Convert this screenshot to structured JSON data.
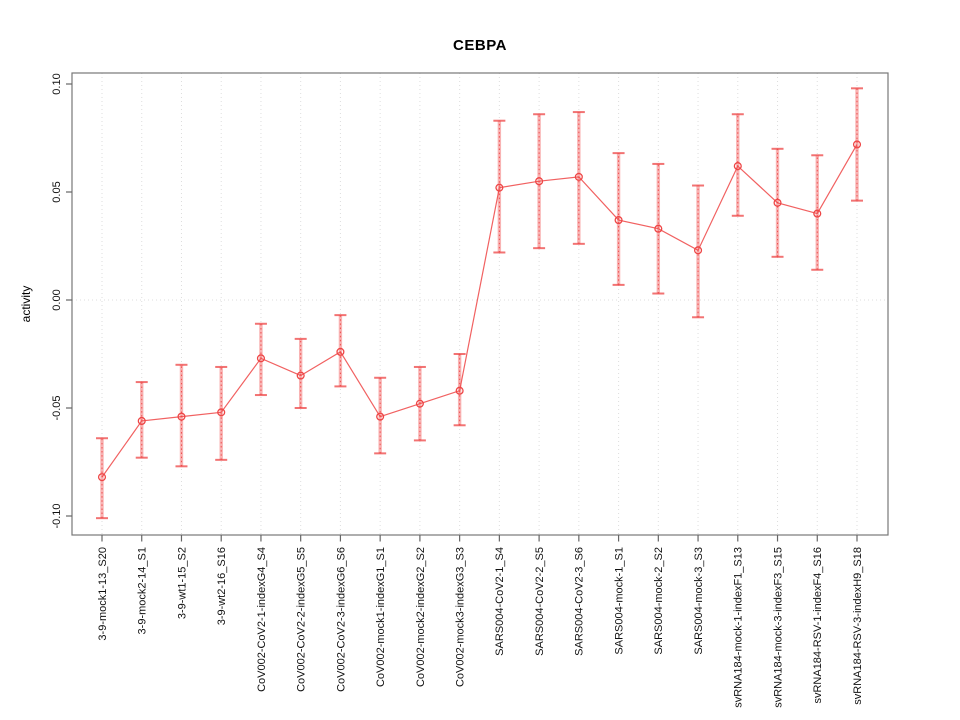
{
  "chart_data": {
    "type": "line",
    "title": "CEBPA",
    "xlabel": "",
    "ylabel": "activity",
    "ylim": [
      -0.109,
      0.105
    ],
    "grid": "vertical dotted gridline at each category; dotted horizontal line at y=0; full plot box; no legend",
    "marker": "open-circle",
    "error_bars": "vertical, semi-transparent thick bar with dashed centerline and flat caps",
    "yticks": {
      "values": [
        0.1,
        0.05,
        0.0,
        -0.05,
        -0.1
      ],
      "labels": [
        "0.10",
        "0.05",
        "0.00",
        "-0.05",
        "-0.10"
      ]
    },
    "categories": [
      "3-9-mock1-13_S20",
      "3-9-mock2-14_S1",
      "3-9-wt1-15_S2",
      "3-9-wt2-16_S16",
      "CoV002-CoV2-1-indexG4_S4",
      "CoV002-CoV2-2-indexG5_S5",
      "CoV002-CoV2-3-indexG6_S6",
      "CoV002-mock1-indexG1_S1",
      "CoV002-mock2-indexG2_S2",
      "CoV002-mock3-indexG3_S3",
      "SARS004-CoV2-1_S4",
      "SARS004-CoV2-2_S5",
      "SARS004-CoV2-3_S6",
      "SARS004-mock-1_S1",
      "SARS004-mock-2_S2",
      "SARS004-mock-3_S3",
      "svRNA184-mock-1-indexF1_S13",
      "svRNA184-mock-3-indexF3_S15",
      "svRNA184-RSV-1-indexF4_S16",
      "svRNA184-RSV-3-indexH9_S18"
    ],
    "series": [
      {
        "name": "activity",
        "values": [
          -0.082,
          -0.056,
          -0.054,
          -0.052,
          -0.027,
          -0.035,
          -0.024,
          -0.054,
          -0.048,
          -0.042,
          0.052,
          0.055,
          0.057,
          0.037,
          0.033,
          0.023,
          0.062,
          0.045,
          0.04,
          0.072
        ],
        "err_lo": [
          -0.101,
          -0.073,
          -0.077,
          -0.074,
          -0.044,
          -0.05,
          -0.04,
          -0.071,
          -0.065,
          -0.058,
          0.022,
          0.024,
          0.026,
          0.007,
          0.003,
          -0.008,
          0.039,
          0.02,
          0.014,
          0.046
        ],
        "err_hi": [
          -0.064,
          -0.038,
          -0.03,
          -0.031,
          -0.011,
          -0.018,
          -0.007,
          -0.036,
          -0.031,
          -0.025,
          0.083,
          0.086,
          0.087,
          0.068,
          0.063,
          0.053,
          0.086,
          0.07,
          0.067,
          0.098
        ]
      }
    ],
    "colors": {
      "series": "#ee4545",
      "error_bar_fill": "#f89a9a",
      "error_bar_dash": "#ee4545",
      "gridline": "#dedede",
      "box": "#777777",
      "tick": "#666666",
      "text": "#111111",
      "background": "#ffffff"
    }
  }
}
